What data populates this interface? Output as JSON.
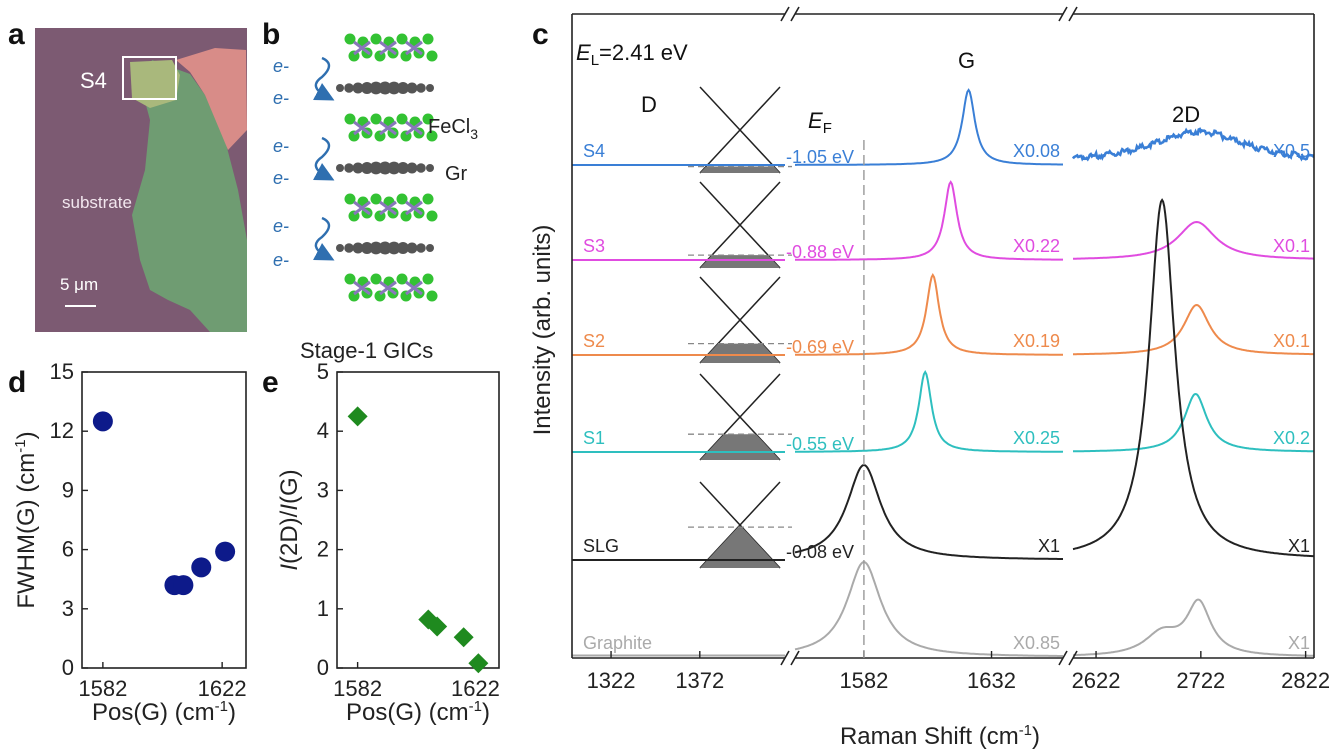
{
  "panels": {
    "a": "a",
    "b": "b",
    "c": "c",
    "d": "d",
    "e": "e"
  },
  "photo": {
    "sample_label": "S4",
    "substrate_label": "substrate",
    "scalebar_label": "5 μm",
    "colors": {
      "substrate": "#7c5a72",
      "flake": "#6f9c72",
      "flake_light": "#a9b87c",
      "pink": "#d88c88"
    }
  },
  "schematic": {
    "electron_label": "e-",
    "fecl3_label": "FeCl",
    "fecl3_sub": "3",
    "gr_label": "Gr",
    "caption": "Stage-1 GICs",
    "colors": {
      "fecl": "#33c233",
      "fe": "#8877bb",
      "carbon": "#555555",
      "arrow": "#2f6fb0"
    }
  },
  "chart_data": [
    {
      "type": "scatter",
      "panel": "d",
      "xlabel": "Pos(G) (cm",
      "xlabel_sup": "-1",
      "xlabel_end": ")",
      "ylabel": "FWHM(G) (cm",
      "ylabel_sup": "-1",
      "ylabel_end": ")",
      "xlim": [
        1575,
        1630
      ],
      "ylim": [
        0,
        15
      ],
      "xticks": [
        1582,
        1622
      ],
      "yticks": [
        0,
        3,
        6,
        9,
        12,
        15
      ],
      "marker": "circle",
      "color": "#0d1a8a",
      "x": [
        1582,
        1606,
        1609,
        1615,
        1623
      ],
      "y": [
        12.5,
        4.2,
        4.2,
        5.1,
        5.9
      ]
    },
    {
      "type": "scatter",
      "panel": "e",
      "xlabel": "Pos(G) (cm",
      "xlabel_sup": "-1",
      "xlabel_end": ")",
      "ylabel_i1": "I",
      "ylabel_mid": "(2D)/",
      "ylabel_i2": "I",
      "ylabel_end": "(G)",
      "xlim": [
        1575,
        1630
      ],
      "ylim": [
        0,
        5
      ],
      "xticks": [
        1582,
        1622
      ],
      "yticks": [
        0,
        1,
        2,
        3,
        4,
        5
      ],
      "marker": "diamond",
      "color": "#1f8a1f",
      "x": [
        1582,
        1606,
        1609,
        1618,
        1623
      ],
      "y": [
        4.25,
        0.82,
        0.7,
        0.52,
        0.08
      ]
    },
    {
      "type": "line",
      "panel": "c",
      "subtitle_E": "E",
      "subtitle_sub": "L",
      "subtitle_rest": "=2.41 eV",
      "xlabel": "Raman Shift (cm",
      "xlabel_sup": "-1",
      "xlabel_end": ")",
      "ylabel": "Intensity (arb. units)",
      "peak_labels": {
        "D": "D",
        "G": "G",
        "2D": "2D"
      },
      "ef_label": "E",
      "ef_sub": "F",
      "segments": [
        {
          "xlim": [
            1300,
            1420
          ],
          "xticks": [
            1322,
            1372
          ]
        },
        {
          "xlim": [
            1555,
            1660
          ],
          "xticks": [
            1582,
            1632
          ]
        },
        {
          "xlim": [
            2600,
            2830
          ],
          "xticks": [
            2622,
            2722,
            2822
          ]
        }
      ],
      "reference_line_x": 1582,
      "series": [
        {
          "name": "S4",
          "color": "#3a7fd6",
          "G_pos": 1623,
          "G_amp": 75,
          "G_w": 3.0,
          "D2_pos": 2720,
          "D2_amp": 32,
          "D2_w": 55,
          "ef": "-1.05 eV",
          "scale_G": "X0.08",
          "scale_2D": "X0.5",
          "fill": 0.15,
          "noisy": true
        },
        {
          "name": "S3",
          "color": "#e04ce0",
          "G_pos": 1616,
          "G_amp": 78,
          "G_w": 3.0,
          "D2_pos": 2718,
          "D2_amp": 38,
          "D2_w": 22,
          "ef": "-0.88 eV",
          "scale_G": "X0.22",
          "scale_2D": "X0.1",
          "fill": 0.3,
          "noisy": false
        },
        {
          "name": "S2",
          "color": "#ee8a4c",
          "G_pos": 1609,
          "G_amp": 80,
          "G_w": 3.0,
          "D2_pos": 2718,
          "D2_amp": 50,
          "D2_w": 15,
          "ef": "-0.69 eV",
          "scale_G": "X0.19",
          "scale_2D": "X0.1",
          "fill": 0.45,
          "noisy": false
        },
        {
          "name": "S1",
          "color": "#2ebfbf",
          "G_pos": 1606,
          "G_amp": 80,
          "G_w": 3.0,
          "D2_pos": 2717,
          "D2_amp": 58,
          "D2_w": 13,
          "ef": "-0.55 eV",
          "scale_G": "X0.25",
          "scale_2D": "X0.2",
          "fill": 0.6,
          "noisy": false
        },
        {
          "name": "SLG",
          "color": "#222222",
          "G_pos": 1582,
          "G_amp": 95,
          "G_w": 8.0,
          "D2_pos": 2685,
          "D2_amp": 360,
          "D2_w": 15,
          "ef": "-0.08 eV",
          "scale_G": "X1",
          "scale_2D": "X1",
          "fill": 0.95,
          "noisy": false
        },
        {
          "name": "Graphite",
          "color": "#aaaaaa",
          "G_pos": 1582,
          "G_amp": 95,
          "G_w": 8.0,
          "D2_pos": 2720,
          "D2_amp": 52,
          "D2_w": 14,
          "ef": "",
          "scale_G": "X0.85",
          "scale_2D": "X1",
          "fill": 0,
          "noisy": false
        }
      ]
    }
  ]
}
